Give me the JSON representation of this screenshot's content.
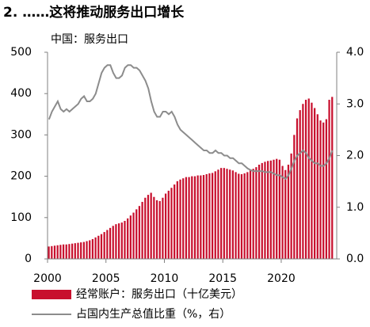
{
  "chart_data": {
    "type": "bar_line",
    "title": "2. ……这将推动服务出口增长",
    "subtitle": "中国：服务出口",
    "x": [
      2000,
      2000.25,
      2000.5,
      2000.75,
      2001,
      2001.25,
      2001.5,
      2001.75,
      2002,
      2002.25,
      2002.5,
      2002.75,
      2003,
      2003.25,
      2003.5,
      2003.75,
      2004,
      2004.25,
      2004.5,
      2004.75,
      2005,
      2005.25,
      2005.5,
      2005.75,
      2006,
      2006.25,
      2006.5,
      2006.75,
      2007,
      2007.25,
      2007.5,
      2007.75,
      2008,
      2008.25,
      2008.5,
      2008.75,
      2009,
      2009.25,
      2009.5,
      2009.75,
      2010,
      2010.25,
      2010.5,
      2010.75,
      2011,
      2011.25,
      2011.5,
      2011.75,
      2012,
      2012.25,
      2012.5,
      2012.75,
      2013,
      2013.25,
      2013.5,
      2013.75,
      2014,
      2014.25,
      2014.5,
      2014.75,
      2015,
      2015.25,
      2015.5,
      2015.75,
      2016,
      2016.25,
      2016.5,
      2016.75,
      2017,
      2017.25,
      2017.5,
      2017.75,
      2018,
      2018.25,
      2018.5,
      2018.75,
      2019,
      2019.25,
      2019.5,
      2019.75,
      2020,
      2020.25,
      2020.5,
      2020.75,
      2021,
      2021.25,
      2021.5,
      2021.75,
      2022,
      2022.25,
      2022.5,
      2022.75,
      2023,
      2023.25,
      2023.5,
      2023.75,
      2024,
      2024.25
    ],
    "series": [
      {
        "name": "经常账户：服务出口（十亿美元）",
        "color": "#c8102e",
        "kind": "bar",
        "axis": "y",
        "values": [
          30,
          31,
          32,
          33,
          34,
          35,
          35,
          36,
          37,
          38,
          39,
          40,
          41,
          43,
          45,
          48,
          52,
          56,
          60,
          65,
          70,
          75,
          80,
          84,
          86,
          88,
          92,
          98,
          105,
          112,
          120,
          128,
          138,
          148,
          155,
          160,
          150,
          142,
          140,
          148,
          158,
          165,
          172,
          180,
          188,
          192,
          195,
          198,
          198,
          200,
          200,
          202,
          202,
          203,
          205,
          207,
          208,
          212,
          216,
          220,
          220,
          218,
          216,
          214,
          210,
          206,
          205,
          207,
          210,
          214,
          218,
          222,
          228,
          232,
          235,
          237,
          238,
          240,
          242,
          240,
          225,
          215,
          228,
          255,
          300,
          340,
          360,
          375,
          385,
          388,
          378,
          365,
          350,
          335,
          330,
          338,
          385,
          392
        ]
      },
      {
        "name": "占国内生产总值比重（%，右）",
        "color": "#8c8c8c",
        "kind": "line",
        "axis": "y2",
        "values": [
          2.7,
          2.85,
          2.95,
          3.05,
          2.9,
          2.85,
          2.9,
          2.85,
          2.9,
          2.95,
          3.0,
          3.1,
          3.15,
          3.05,
          3.05,
          3.1,
          3.2,
          3.4,
          3.6,
          3.7,
          3.75,
          3.75,
          3.6,
          3.5,
          3.5,
          3.55,
          3.7,
          3.75,
          3.75,
          3.7,
          3.7,
          3.65,
          3.55,
          3.45,
          3.3,
          3.05,
          2.85,
          2.75,
          2.75,
          2.85,
          2.85,
          2.8,
          2.85,
          2.75,
          2.6,
          2.5,
          2.45,
          2.4,
          2.35,
          2.3,
          2.25,
          2.2,
          2.15,
          2.1,
          2.1,
          2.05,
          2.05,
          2.1,
          2.05,
          2.05,
          2.0,
          2.0,
          1.95,
          1.95,
          1.9,
          1.85,
          1.85,
          1.8,
          1.75,
          1.72,
          1.7,
          1.7,
          1.7,
          1.7,
          1.68,
          1.68,
          1.68,
          1.65,
          1.62,
          1.62,
          1.58,
          1.55,
          1.62,
          1.75,
          1.9,
          2.0,
          2.05,
          2.1,
          2.05,
          1.95,
          1.9,
          1.85,
          1.85,
          1.8,
          1.8,
          1.85,
          1.95,
          2.1
        ]
      }
    ],
    "xlim": [
      2000,
      2024.75
    ],
    "xticks": [
      2000,
      2005,
      2010,
      2015,
      2020
    ],
    "ylim": [
      0,
      500
    ],
    "yticks": [
      0,
      100,
      200,
      300,
      400,
      500
    ],
    "y2lim": [
      0,
      4
    ],
    "y2ticks": [
      {
        "value": 0,
        "label": "0.0"
      },
      {
        "value": 1,
        "label": "1.0"
      },
      {
        "value": 2,
        "label": "2.0"
      },
      {
        "value": 3,
        "label": "3.0"
      },
      {
        "value": 4,
        "label": "4.0"
      }
    ]
  }
}
